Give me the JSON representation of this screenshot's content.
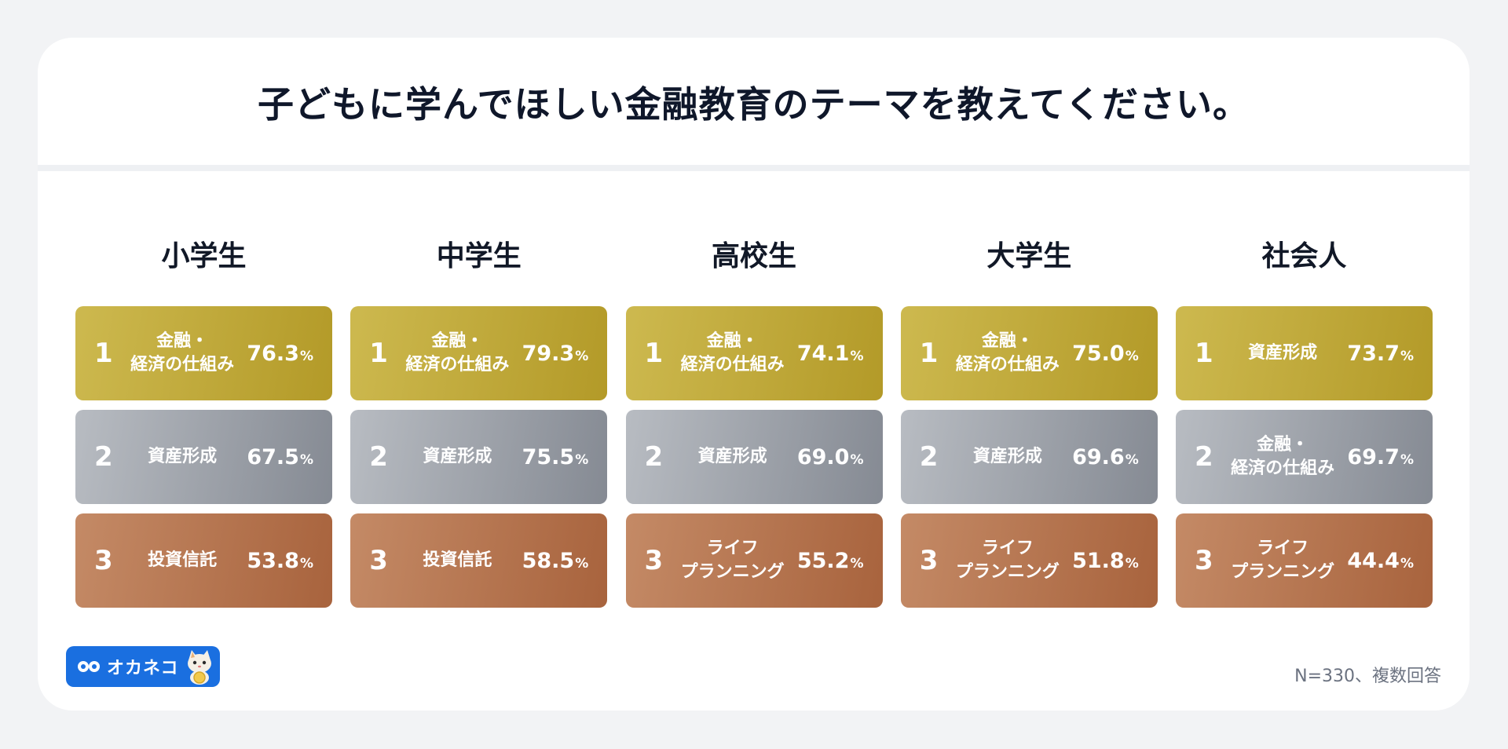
{
  "title": "子どもに学んでほしい金融教育のテーマを教えてください。",
  "columns": [
    {
      "label": "小学生",
      "ranks": [
        {
          "rank": "1",
          "theme": "金融・\n経済の仕組み",
          "value": "76.3",
          "unit": "%"
        },
        {
          "rank": "2",
          "theme": "資産形成",
          "value": "67.5",
          "unit": "%"
        },
        {
          "rank": "3",
          "theme": "投資信託",
          "value": "53.8",
          "unit": "%"
        }
      ]
    },
    {
      "label": "中学生",
      "ranks": [
        {
          "rank": "1",
          "theme": "金融・\n経済の仕組み",
          "value": "79.3",
          "unit": "%"
        },
        {
          "rank": "2",
          "theme": "資産形成",
          "value": "75.5",
          "unit": "%"
        },
        {
          "rank": "3",
          "theme": "投資信託",
          "value": "58.5",
          "unit": "%"
        }
      ]
    },
    {
      "label": "高校生",
      "ranks": [
        {
          "rank": "1",
          "theme": "金融・\n経済の仕組み",
          "value": "74.1",
          "unit": "%"
        },
        {
          "rank": "2",
          "theme": "資産形成",
          "value": "69.0",
          "unit": "%"
        },
        {
          "rank": "3",
          "theme": "ライフ\nプランニング",
          "value": "55.2",
          "unit": "%"
        }
      ]
    },
    {
      "label": "大学生",
      "ranks": [
        {
          "rank": "1",
          "theme": "金融・\n経済の仕組み",
          "value": "75.0",
          "unit": "%"
        },
        {
          "rank": "2",
          "theme": "資産形成",
          "value": "69.6",
          "unit": "%"
        },
        {
          "rank": "3",
          "theme": "ライフ\nプランニング",
          "value": "51.8",
          "unit": "%"
        }
      ]
    },
    {
      "label": "社会人",
      "ranks": [
        {
          "rank": "1",
          "theme": "資産形成",
          "value": "73.7",
          "unit": "%"
        },
        {
          "rank": "2",
          "theme": "金融・\n経済の仕組み",
          "value": "69.7",
          "unit": "%"
        },
        {
          "rank": "3",
          "theme": "ライフ\nプランニング",
          "value": "44.4",
          "unit": "%"
        }
      ]
    }
  ],
  "logo": {
    "text": "オカネコ",
    "icon": "okaneko-cat-icon"
  },
  "note": "N=330、複数回答",
  "colors": {
    "rank1": "#b39a28",
    "rank2": "#858a93",
    "rank3": "#a8633d",
    "logo_bg": "#1a6fe0"
  }
}
